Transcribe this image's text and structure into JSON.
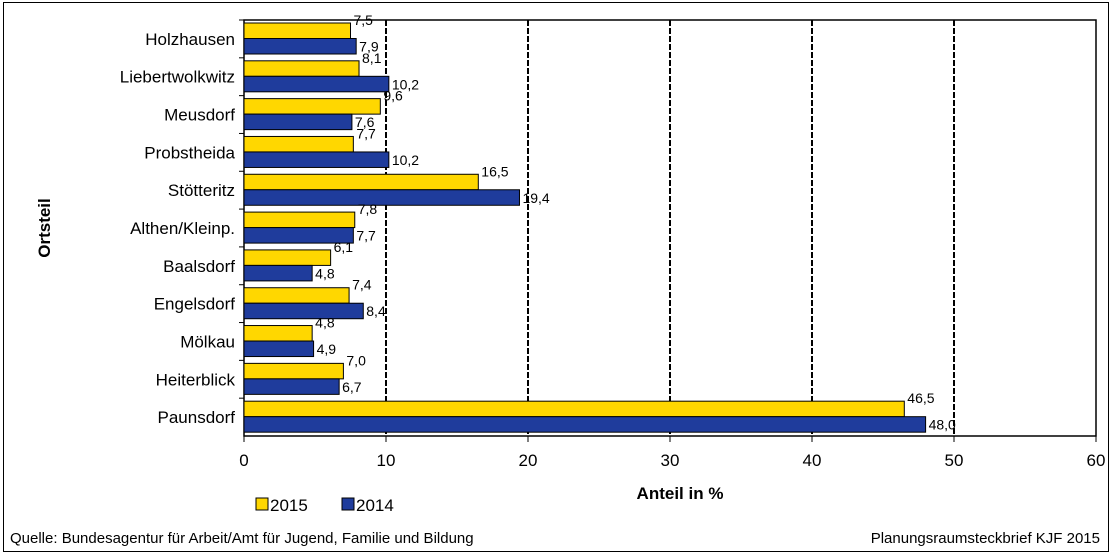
{
  "chart_data": {
    "type": "bar",
    "orientation": "horizontal",
    "categories": [
      "Holzhausen",
      "Liebertwolkwitz",
      "Meusdorf",
      "Probstheida",
      "Stötteritz",
      "Althen/Kleinp.",
      "Baalsdorf",
      "Engelsdorf",
      "Mölkau",
      "Heiterblick",
      "Paunsdorf"
    ],
    "labels": [
      [
        "7,5",
        "7,9"
      ],
      [
        "8,1",
        "10,2"
      ],
      [
        "9,6",
        "7,6"
      ],
      [
        "7,7",
        "10,2"
      ],
      [
        "16,5",
        "19,4"
      ],
      [
        "7,8",
        "7,7"
      ],
      [
        "6,1",
        "4,8"
      ],
      [
        "7,4",
        "8,4"
      ],
      [
        "4,8",
        "4,9"
      ],
      [
        "7,0",
        "6,7"
      ],
      [
        "46,5",
        "48,0"
      ]
    ],
    "series": [
      {
        "name": "2015",
        "color": "#FFD700",
        "values": [
          7.5,
          8.1,
          9.6,
          7.7,
          16.5,
          7.8,
          6.1,
          7.4,
          4.8,
          7.0,
          46.5
        ]
      },
      {
        "name": "2014",
        "color": "#1F3C9C",
        "values": [
          7.9,
          10.2,
          7.6,
          10.2,
          19.4,
          7.7,
          4.8,
          8.4,
          4.9,
          6.7,
          48.0
        ]
      }
    ],
    "xlabel": "Anteil in %",
    "ylabel": "Ortsteil",
    "xlim": [
      0,
      60
    ],
    "xticks": [
      0,
      10,
      20,
      30,
      40,
      50,
      60
    ],
    "grid": "vertical dashed",
    "legend": "bottom-left"
  },
  "footer": {
    "source": "Quelle: Bundesagentur für Arbeit/Amt für Jugend, Familie und Bildung",
    "credit": "Planungsraumsteckbrief KJF 2015"
  }
}
